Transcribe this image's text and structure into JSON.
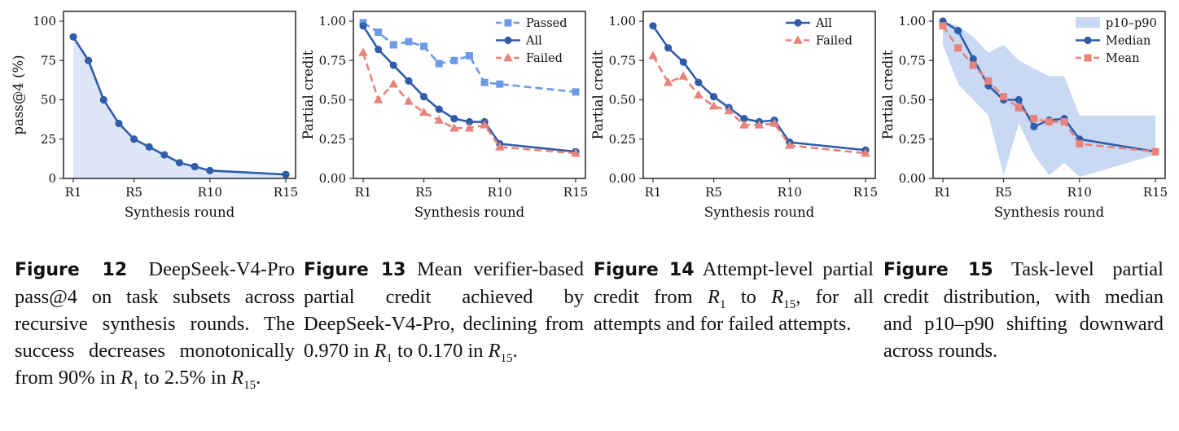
{
  "chart_data": [
    {
      "id": "fig12",
      "type": "area",
      "x_ticks": [
        "R1",
        "R5",
        "R10",
        "R15"
      ],
      "x_tick_values": [
        1,
        5,
        10,
        15
      ],
      "xlim": [
        1,
        15
      ],
      "ylim": [
        0,
        100
      ],
      "y_ticks": [
        "0",
        "25",
        "50",
        "75",
        "100"
      ],
      "y_tick_values": [
        0,
        25,
        50,
        75,
        100
      ],
      "xlabel": "Synthesis round",
      "ylabel": "pass@4 (%)",
      "series": [
        {
          "name": "",
          "color": "#2f5daa",
          "marker": "circle",
          "dash": false,
          "fill": "#dce6f6",
          "x": [
            1,
            2,
            3,
            4,
            5,
            6,
            7,
            8,
            9,
            10,
            15
          ],
          "y": [
            90,
            75,
            50,
            35,
            25,
            20,
            15,
            10,
            7.5,
            5,
            2.5
          ]
        }
      ],
      "legend": null
    },
    {
      "id": "fig13",
      "type": "line",
      "x_ticks": [
        "R1",
        "R5",
        "R10",
        "R15"
      ],
      "x_tick_values": [
        1,
        5,
        10,
        15
      ],
      "xlim": [
        1,
        15
      ],
      "ylim": [
        0,
        1
      ],
      "y_ticks": [
        "0.00",
        "0.25",
        "0.50",
        "0.75",
        "1.00"
      ],
      "y_tick_values": [
        0,
        0.25,
        0.5,
        0.75,
        1
      ],
      "xlabel": "Synthesis round",
      "ylabel": "Partial credit",
      "series": [
        {
          "name": "Passed",
          "color": "#6d9ae6",
          "marker": "square",
          "dash": true,
          "x": [
            1,
            2,
            3,
            4,
            5,
            6,
            7,
            8,
            9,
            10,
            15
          ],
          "y": [
            0.99,
            0.93,
            0.85,
            0.87,
            0.84,
            0.73,
            0.75,
            0.78,
            0.61,
            0.6,
            0.55
          ]
        },
        {
          "name": "All",
          "color": "#2f5daa",
          "marker": "circle",
          "dash": false,
          "x": [
            1,
            2,
            3,
            4,
            5,
            6,
            7,
            8,
            9,
            10,
            15
          ],
          "y": [
            0.97,
            0.82,
            0.72,
            0.62,
            0.52,
            0.44,
            0.38,
            0.36,
            0.36,
            0.22,
            0.17
          ]
        },
        {
          "name": "Failed",
          "color": "#e8827a",
          "marker": "triangle",
          "dash": true,
          "x": [
            1,
            2,
            3,
            4,
            5,
            6,
            7,
            8,
            9,
            10,
            15
          ],
          "y": [
            0.8,
            0.5,
            0.6,
            0.49,
            0.42,
            0.37,
            0.32,
            0.32,
            0.34,
            0.2,
            0.16
          ]
        }
      ],
      "legend": {
        "position": "top-right",
        "items": [
          "Passed",
          "All",
          "Failed"
        ]
      }
    },
    {
      "id": "fig14",
      "type": "line",
      "x_ticks": [
        "R1",
        "R5",
        "R10",
        "R15"
      ],
      "x_tick_values": [
        1,
        5,
        10,
        15
      ],
      "xlim": [
        1,
        15
      ],
      "ylim": [
        0,
        1
      ],
      "y_ticks": [
        "0.00",
        "0.25",
        "0.50",
        "0.75",
        "1.00"
      ],
      "y_tick_values": [
        0,
        0.25,
        0.5,
        0.75,
        1
      ],
      "xlabel": "Synthesis round",
      "ylabel": "Partial credit",
      "series": [
        {
          "name": "All",
          "color": "#2f5daa",
          "marker": "circle",
          "dash": false,
          "x": [
            1,
            2,
            3,
            4,
            5,
            6,
            7,
            8,
            9,
            10,
            15
          ],
          "y": [
            0.97,
            0.83,
            0.74,
            0.61,
            0.52,
            0.45,
            0.38,
            0.36,
            0.37,
            0.23,
            0.18
          ]
        },
        {
          "name": "Failed",
          "color": "#e8827a",
          "marker": "triangle",
          "dash": true,
          "x": [
            1,
            2,
            3,
            4,
            5,
            6,
            7,
            8,
            9,
            10,
            15
          ],
          "y": [
            0.78,
            0.61,
            0.65,
            0.53,
            0.46,
            0.43,
            0.34,
            0.34,
            0.35,
            0.21,
            0.16
          ]
        }
      ],
      "legend": {
        "position": "top-right",
        "items": [
          "All",
          "Failed"
        ]
      }
    },
    {
      "id": "fig15",
      "type": "line",
      "x_ticks": [
        "R1",
        "R5",
        "R10",
        "R15"
      ],
      "x_tick_values": [
        1,
        5,
        10,
        15
      ],
      "xlim": [
        1,
        15
      ],
      "ylim": [
        0,
        1
      ],
      "y_ticks": [
        "0.00",
        "0.25",
        "0.50",
        "0.75",
        "1.00"
      ],
      "y_tick_values": [
        0,
        0.25,
        0.5,
        0.75,
        1
      ],
      "xlabel": "Synthesis round",
      "ylabel": "Partial credit",
      "band": {
        "name": "p10–p90",
        "color": "#c9d9f3",
        "x": [
          1,
          2,
          3,
          4,
          5,
          6,
          7,
          8,
          9,
          10,
          15
        ],
        "low": [
          0.85,
          0.6,
          0.5,
          0.4,
          0.02,
          0.35,
          0.15,
          0.02,
          0.1,
          0.01,
          0.15
        ],
        "high": [
          1.0,
          0.97,
          0.9,
          0.8,
          0.85,
          0.75,
          0.7,
          0.65,
          0.65,
          0.4,
          0.4
        ]
      },
      "series": [
        {
          "name": "Median",
          "color": "#2f5daa",
          "marker": "circle",
          "dash": false,
          "x": [
            1,
            2,
            3,
            4,
            5,
            6,
            7,
            8,
            9,
            10,
            15
          ],
          "y": [
            1.0,
            0.94,
            0.76,
            0.59,
            0.5,
            0.5,
            0.33,
            0.37,
            0.38,
            0.25,
            0.17
          ]
        },
        {
          "name": "Mean",
          "color": "#e8827a",
          "marker": "square",
          "dash": true,
          "x": [
            1,
            2,
            3,
            4,
            5,
            6,
            7,
            8,
            9,
            10,
            15
          ],
          "y": [
            0.97,
            0.83,
            0.72,
            0.62,
            0.52,
            0.45,
            0.38,
            0.36,
            0.36,
            0.22,
            0.17
          ]
        }
      ],
      "legend": {
        "position": "top-right",
        "items": [
          "p10–p90",
          "Median",
          "Mean"
        ]
      }
    }
  ],
  "captions": [
    {
      "fig_label": "Figure 12",
      "parts": [
        {
          "t": "text",
          "v": " DeepSeek-V4-Pro pass@4 on task subsets across recursive synthesis rounds. The success decreases monotonically from 90% in "
        },
        {
          "t": "math",
          "v": "R",
          "sub": "1"
        },
        {
          "t": "text",
          "v": " to 2.5% in "
        },
        {
          "t": "math",
          "v": "R",
          "sub": "15"
        },
        {
          "t": "text",
          "v": "."
        }
      ]
    },
    {
      "fig_label": "Figure 13",
      "parts": [
        {
          "t": "text",
          "v": " Mean verifier-based partial credit achieved by DeepSeek-V4-Pro, declining from 0.970 in "
        },
        {
          "t": "math",
          "v": "R",
          "sub": "1"
        },
        {
          "t": "text",
          "v": " to 0.170 in "
        },
        {
          "t": "math",
          "v": "R",
          "sub": "15"
        },
        {
          "t": "text",
          "v": "."
        }
      ]
    },
    {
      "fig_label": "Figure 14",
      "parts": [
        {
          "t": "text",
          "v": " Attempt-level partial credit from "
        },
        {
          "t": "math",
          "v": "R",
          "sub": "1"
        },
        {
          "t": "text",
          "v": " to "
        },
        {
          "t": "math",
          "v": "R",
          "sub": "15"
        },
        {
          "t": "text",
          "v": ", for all attempts and for failed attempts."
        }
      ]
    },
    {
      "fig_label": "Figure 15",
      "parts": [
        {
          "t": "text",
          "v": " Task-level partial credit distribution, with median and p10–p90 shifting downward across rounds."
        }
      ]
    }
  ]
}
